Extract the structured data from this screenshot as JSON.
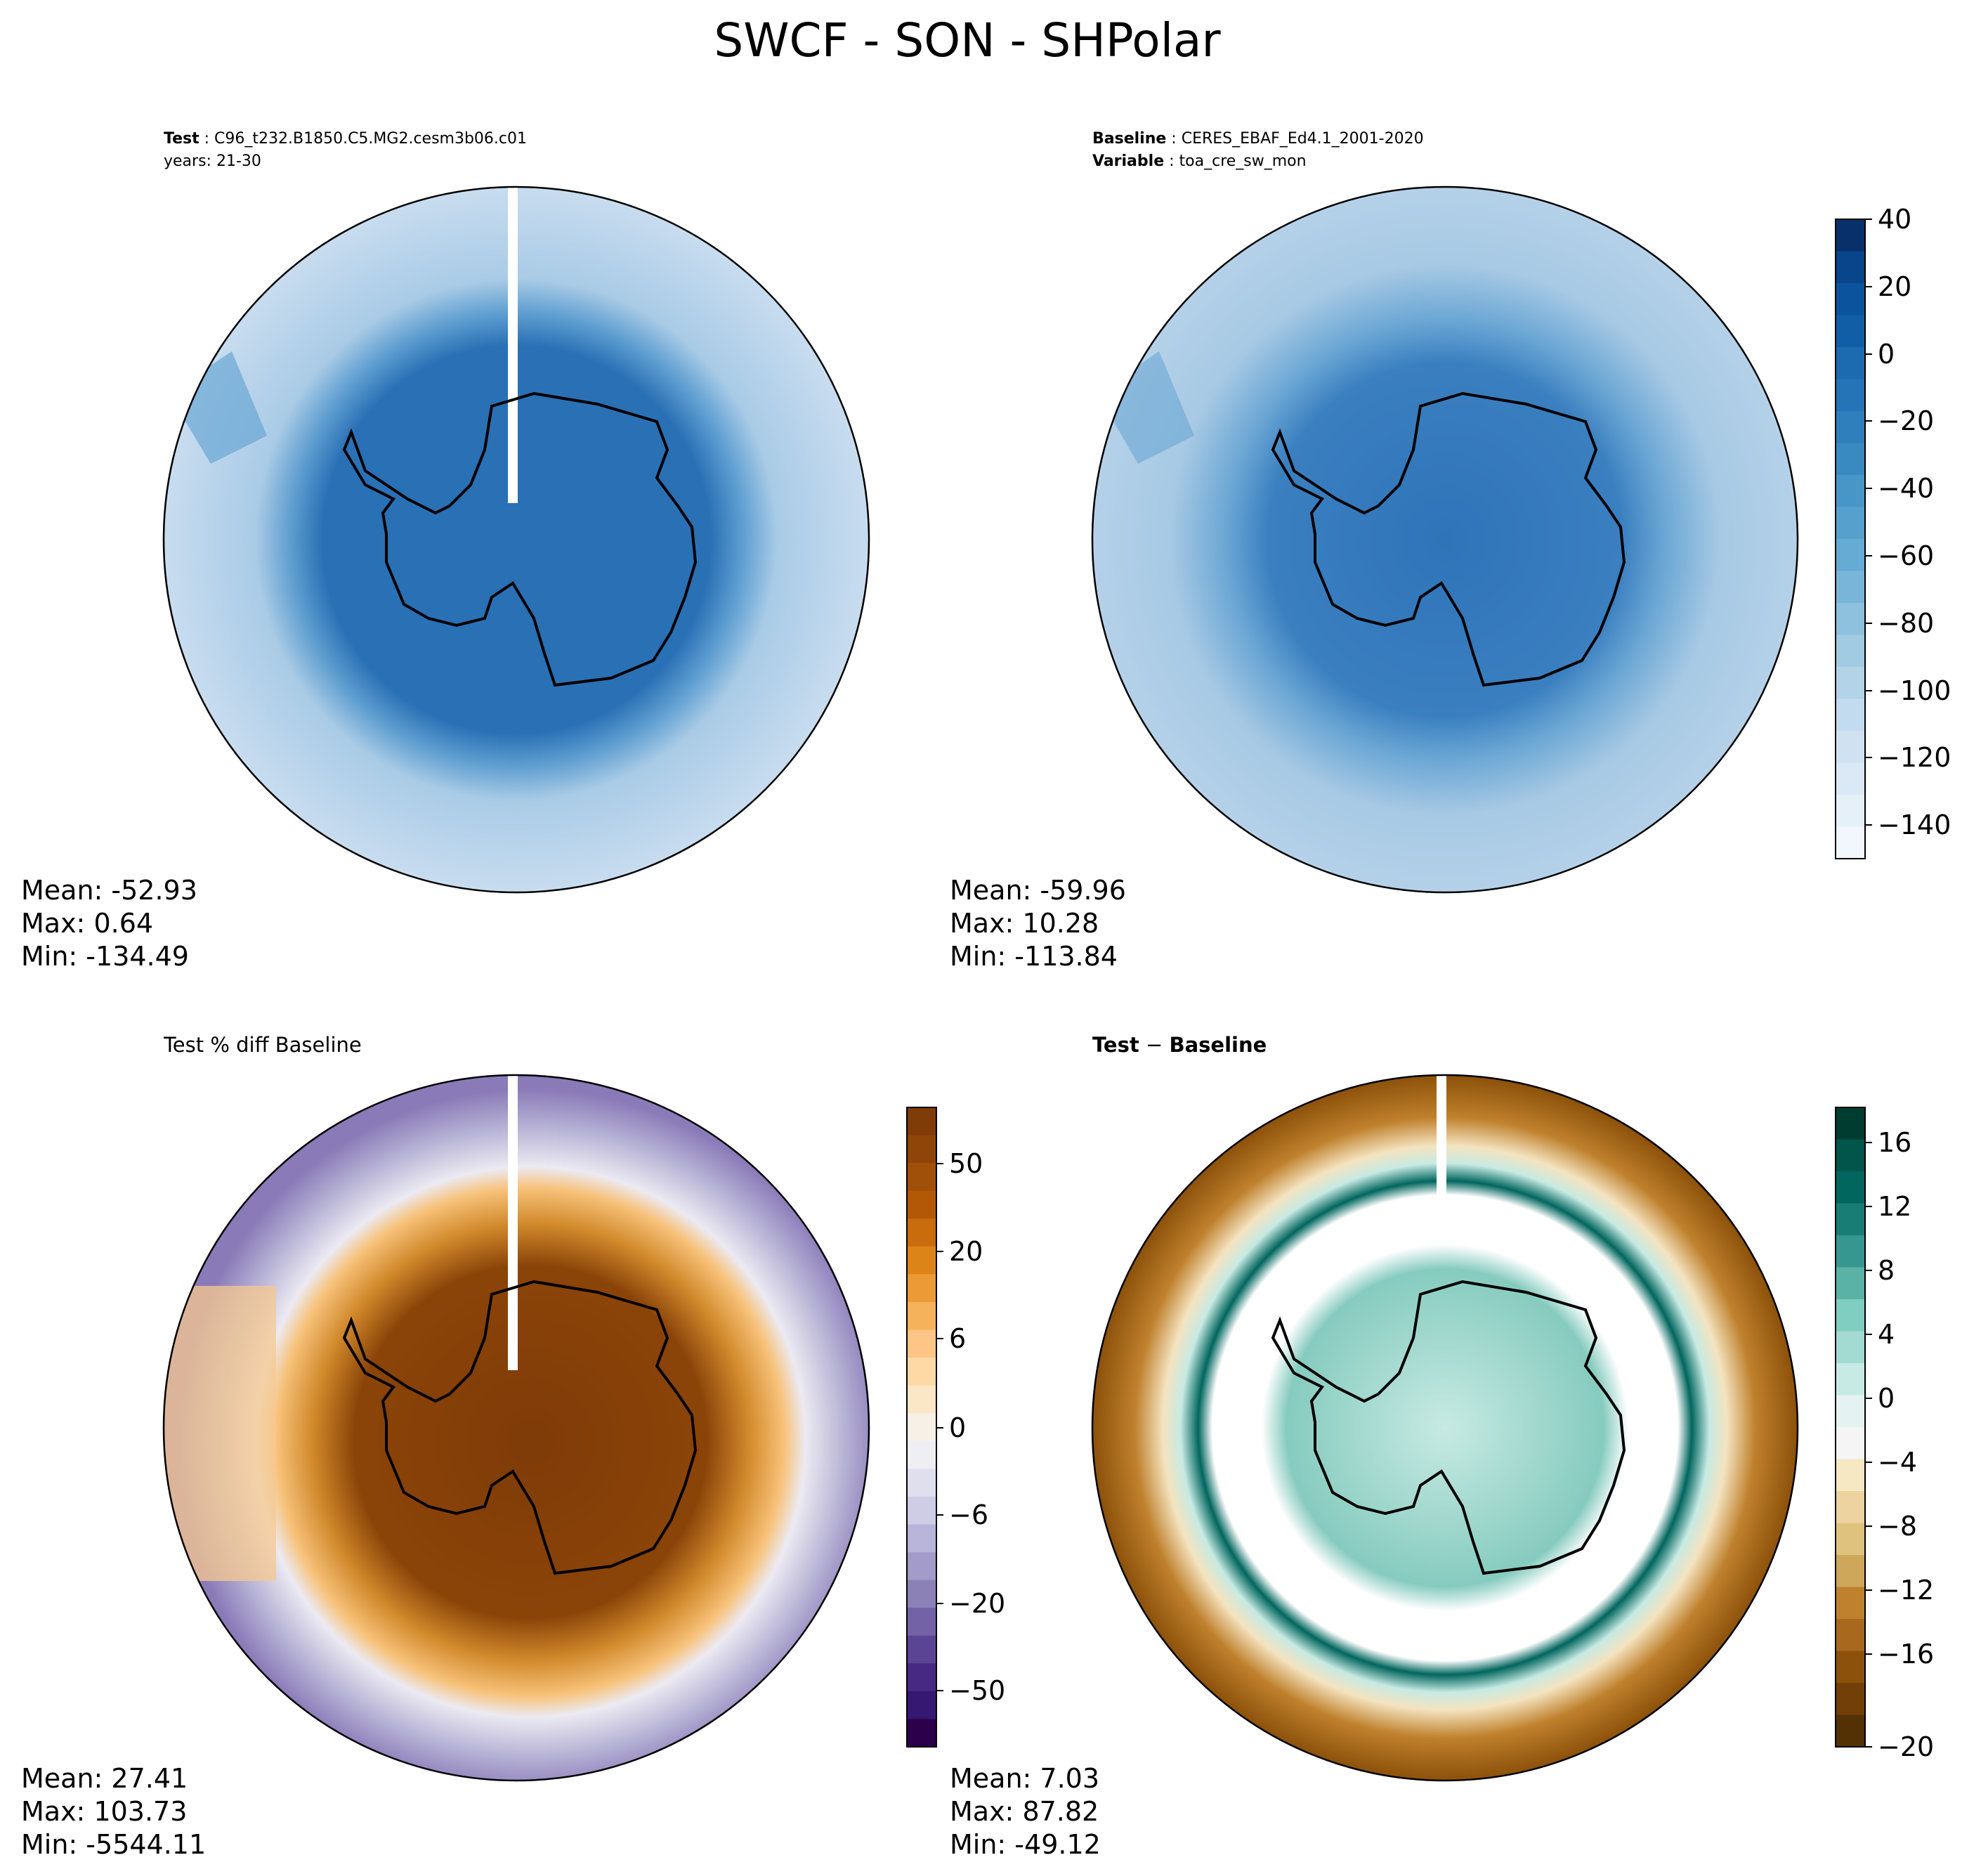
{
  "title": "SWCF - SON - SHPolar",
  "panels": {
    "test": {
      "label_key": "Test",
      "label_value": "C96_t232.B1850.C5.MG2.cesm3b06.c01",
      "years": "years: 21-30",
      "stats": {
        "mean": "Mean: -52.93",
        "max": "Max:  0.64",
        "min": "Min: -134.49"
      }
    },
    "baseline": {
      "label_key": "Baseline",
      "label_value": "CERES_EBAF_Ed4.1_2001-2020",
      "var_key": "Variable",
      "var_value": "toa_cre_sw_mon",
      "stats": {
        "mean": "Mean: -59.96",
        "max": "Max: 10.28",
        "min": "Min: -113.84"
      }
    },
    "pctdiff": {
      "label": "Test % diff Baseline",
      "stats": {
        "mean": "Mean: 27.41",
        "max": "Max: 103.73",
        "min": "Min: -5544.11"
      }
    },
    "diff": {
      "label_a": "Test",
      "label_sep": " − ",
      "label_b": "Baseline",
      "stats": {
        "mean": "Mean:  7.03",
        "max": "Max: 87.82",
        "min": "Min: -49.12"
      }
    }
  },
  "chart_data": [
    {
      "type": "heatmap",
      "panel": "Test",
      "projection": "south polar stereographic",
      "colormap": "Blues (reversed)",
      "colorbar_ticks": [
        "40",
        "20",
        "0",
        "−20",
        "−40",
        "−60",
        "−80",
        "−100",
        "−120",
        "−140"
      ],
      "clim": [
        -150,
        40
      ],
      "mean": -52.93,
      "max": 0.64,
      "min": -134.49
    },
    {
      "type": "heatmap",
      "panel": "Baseline",
      "projection": "south polar stereographic",
      "colormap": "Blues (reversed)",
      "colorbar_ticks": [
        "40",
        "20",
        "0",
        "−20",
        "−40",
        "−60",
        "−80",
        "−100",
        "−120",
        "−140"
      ],
      "clim": [
        -150,
        40
      ],
      "mean": -59.96,
      "max": 10.28,
      "min": -113.84
    },
    {
      "type": "heatmap",
      "panel": "Test % diff Baseline",
      "projection": "south polar stereographic",
      "colormap": "PuOr",
      "colorbar_ticks": [
        "50",
        "20",
        "6",
        "0",
        "−6",
        "−20",
        "−50"
      ],
      "mean": 27.41,
      "max": 103.73,
      "min": -5544.11
    },
    {
      "type": "heatmap",
      "panel": "Test − Baseline",
      "projection": "south polar stereographic",
      "colormap": "BrBG",
      "colorbar_ticks": [
        "16",
        "12",
        "8",
        "4",
        "0",
        "−4",
        "−8",
        "−12",
        "−16",
        "−20"
      ],
      "clim": [
        -20,
        18
      ],
      "mean": 7.03,
      "max": 87.82,
      "min": -49.12
    }
  ]
}
